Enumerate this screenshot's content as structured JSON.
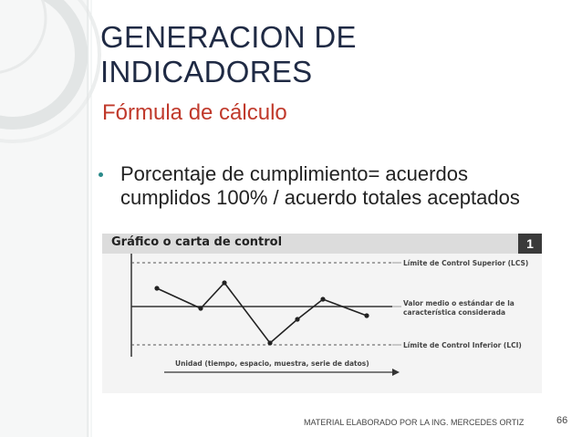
{
  "slide": {
    "title_lines": [
      "GENERACION DE",
      "INDICADORES"
    ],
    "subtitle": "Fórmula de cálculo",
    "bullet": "Porcentaje de cumplimiento= acuerdos cumplidos 100% / acuerdo totales aceptados",
    "footer": "MATERIAL ELABORADO POR LA ING. MERCEDES ORTIZ",
    "page_number": "66"
  },
  "figure": {
    "title": "Gráfico o carta de control",
    "number": "1",
    "lcs_label": "Límite de Control Superior (LCS)",
    "mean_label_lines": [
      "Valor medio o estándar de la",
      "característica considerada"
    ],
    "lci_label": "Límite de Control Inferior (LCI)",
    "x_axis_label": "Unidad (tiempo, espacio, muestra, serie de datos)"
  },
  "colors": {
    "title": "#1f2a44",
    "subtitle": "#c0392b",
    "bullet_dot": "#2a8a8a"
  }
}
